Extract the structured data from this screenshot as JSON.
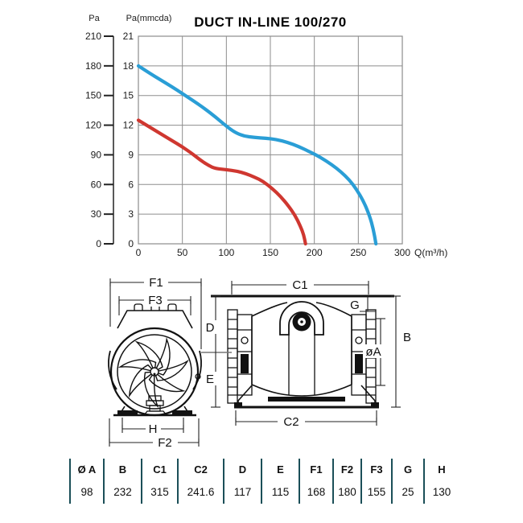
{
  "chart_data": {
    "type": "line",
    "title": "DUCT IN-LINE 100/270",
    "xlabel": "Q(m³/h)",
    "ylabel": "Pa(mmcda)",
    "y2label": "Pa",
    "xlim": [
      0,
      300
    ],
    "ylim": [
      0,
      21
    ],
    "y2lim": [
      0,
      210
    ],
    "x_ticks": [
      0,
      50,
      100,
      150,
      200,
      250,
      300
    ],
    "y_ticks_mmcda": [
      0,
      3,
      6,
      9,
      12,
      15,
      18,
      21
    ],
    "y_ticks_pa": [
      0,
      30,
      60,
      90,
      120,
      150,
      180,
      210
    ],
    "grid": true,
    "legend": "none",
    "series": [
      {
        "name": "blue-curve",
        "color": "#2a9ed6",
        "points": [
          [
            0,
            18
          ],
          [
            12,
            17.3
          ],
          [
            25,
            16.6
          ],
          [
            38,
            15.9
          ],
          [
            50,
            15.2
          ],
          [
            62,
            14.5
          ],
          [
            75,
            13.7
          ],
          [
            88,
            12.8
          ],
          [
            100,
            11.9
          ],
          [
            110,
            11.25
          ],
          [
            120,
            10.9
          ],
          [
            132,
            10.75
          ],
          [
            145,
            10.68
          ],
          [
            157,
            10.55
          ],
          [
            170,
            10.25
          ],
          [
            182,
            9.85
          ],
          [
            195,
            9.3
          ],
          [
            207,
            8.75
          ],
          [
            220,
            8.0
          ],
          [
            230,
            7.3
          ],
          [
            240,
            6.45
          ],
          [
            248,
            5.5
          ],
          [
            256,
            4.3
          ],
          [
            263,
            2.8
          ],
          [
            267,
            1.5
          ],
          [
            270,
            0
          ]
        ]
      },
      {
        "name": "red-curve",
        "color": "#cf3730",
        "points": [
          [
            0,
            12.5
          ],
          [
            12,
            11.85
          ],
          [
            25,
            11.15
          ],
          [
            38,
            10.45
          ],
          [
            50,
            9.8
          ],
          [
            60,
            9.2
          ],
          [
            70,
            8.5
          ],
          [
            80,
            7.9
          ],
          [
            88,
            7.6
          ],
          [
            100,
            7.5
          ],
          [
            112,
            7.35
          ],
          [
            122,
            7.1
          ],
          [
            132,
            6.75
          ],
          [
            142,
            6.3
          ],
          [
            152,
            5.6
          ],
          [
            162,
            4.75
          ],
          [
            170,
            3.9
          ],
          [
            178,
            2.9
          ],
          [
            184,
            1.8
          ],
          [
            188,
            0.9
          ],
          [
            190,
            0
          ]
        ]
      }
    ]
  },
  "drawings": {
    "front_view": {
      "labels": {
        "f1": "F1",
        "f3": "F3",
        "h": "H",
        "f2": "F2"
      }
    },
    "side_view": {
      "labels": {
        "c1": "C1",
        "g": "G",
        "d": "D",
        "b": "B",
        "dia_a": "øA",
        "e": "E",
        "c2": "C2"
      }
    }
  },
  "dimensions_table": {
    "headers": [
      "Ø A",
      "B",
      "C1",
      "C2",
      "D",
      "E",
      "F1",
      "F2",
      "F3",
      "G",
      "H"
    ],
    "values": [
      "98",
      "232",
      "315",
      "241.6",
      "117",
      "115",
      "168",
      "180",
      "155",
      "25",
      "130"
    ],
    "divider_color": "#1b4f58"
  }
}
